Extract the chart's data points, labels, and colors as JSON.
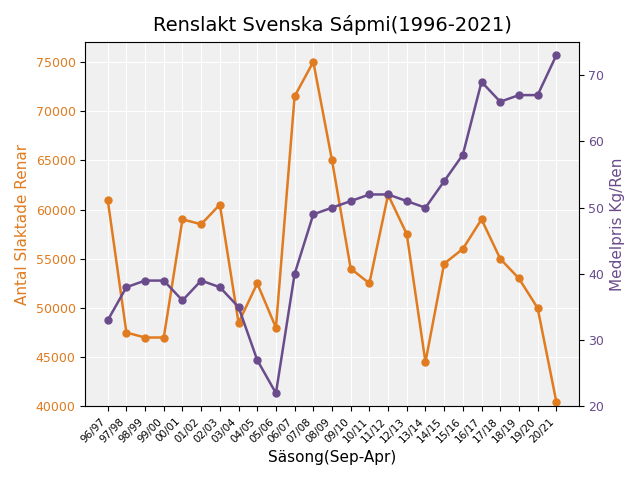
{
  "title": "Renslakt Svenska Sápmi(1996-2021)",
  "xlabel": "Säsong(Sep-Apr)",
  "ylabel_left": "Antal Slaktade Renar",
  "ylabel_right": "Medelpris Kg/Ren",
  "seasons": [
    "96/97",
    "97/98",
    "98/99",
    "99/00",
    "00/01",
    "01/02",
    "02/03",
    "03/04",
    "04/05",
    "05/06",
    "06/07",
    "07/08",
    "08/09",
    "09/10",
    "10/11",
    "11/12",
    "12/13",
    "13/14",
    "14/15",
    "15/16",
    "16/17",
    "17/18",
    "18/19",
    "19/20",
    "20/21"
  ],
  "antal_slaktade": [
    61000,
    47500,
    47000,
    47000,
    59000,
    58500,
    60500,
    48500,
    52500,
    48000,
    71500,
    75000,
    65000,
    54000,
    52500,
    61500,
    57500,
    44500,
    54500,
    56000,
    59000,
    55000,
    53000,
    50000,
    40500
  ],
  "medelpris": [
    33,
    38,
    39,
    39,
    36,
    39,
    38,
    35,
    27,
    22,
    40,
    49,
    50,
    51,
    52,
    52,
    51,
    50,
    54,
    58,
    69,
    66,
    67,
    67,
    73
  ],
  "color_antal": "#e07b20",
  "color_pris": "#6a4c8c",
  "ylim_left": [
    40000,
    77000
  ],
  "ylim_right": [
    20,
    75
  ],
  "title_fontsize": 14,
  "label_fontsize": 11,
  "tick_fontsize": 9,
  "xtick_fontsize": 7.5
}
